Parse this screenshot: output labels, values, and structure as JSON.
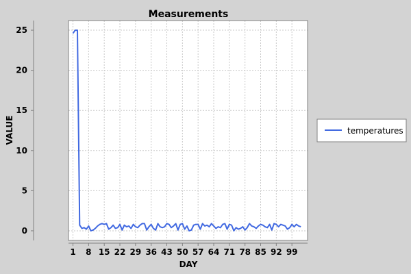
{
  "chart_data": {
    "type": "line",
    "title": "Measurements",
    "xlabel": "DAY",
    "ylabel": "VALUE",
    "xlim": [
      -1,
      106
    ],
    "ylim": [
      -1.2,
      26.2
    ],
    "x_ticks": [
      1,
      8,
      15,
      22,
      29,
      36,
      43,
      50,
      57,
      64,
      71,
      78,
      85,
      92,
      99
    ],
    "y_ticks": [
      0,
      5,
      10,
      15,
      20,
      25
    ],
    "grid": true,
    "legend_position": "right",
    "series": [
      {
        "name": "temperatures",
        "color": "#4169e1",
        "x": [
          1,
          2,
          3,
          4,
          5,
          6,
          7,
          8,
          9,
          10,
          11,
          12,
          13,
          14,
          15,
          16,
          17,
          18,
          19,
          20,
          21,
          22,
          23,
          24,
          25,
          26,
          27,
          28,
          29,
          30,
          31,
          32,
          33,
          34,
          35,
          36,
          37,
          38,
          39,
          40,
          41,
          42,
          43,
          44,
          45,
          46,
          47,
          48,
          49,
          50,
          51,
          52,
          53,
          54,
          55,
          56,
          57,
          58,
          59,
          60,
          61,
          62,
          63,
          64,
          65,
          66,
          67,
          68,
          69,
          70,
          71,
          72,
          73,
          74,
          75,
          76,
          77,
          78,
          79,
          80,
          81,
          82,
          83,
          84,
          85,
          86,
          87,
          88,
          89,
          90,
          91,
          92,
          93,
          94,
          95,
          96,
          97,
          98,
          99,
          100,
          101,
          102,
          103
        ],
        "y": [
          24.6,
          25.0,
          25.0,
          0.7,
          0.3,
          0.4,
          0.2,
          0.6,
          0.0,
          0.1,
          0.3,
          0.6,
          0.8,
          0.9,
          0.8,
          0.9,
          0.2,
          0.4,
          0.7,
          0.3,
          0.4,
          0.8,
          0.1,
          0.7,
          0.5,
          0.6,
          0.3,
          0.8,
          0.5,
          0.4,
          0.7,
          0.9,
          0.9,
          0.1,
          0.5,
          0.8,
          0.3,
          0.1,
          0.9,
          0.5,
          0.4,
          0.5,
          0.9,
          0.8,
          0.4,
          0.6,
          0.9,
          0.1,
          0.8,
          0.9,
          0.2,
          0.6,
          0.0,
          0.1,
          0.7,
          0.8,
          0.8,
          0.2,
          0.9,
          0.6,
          0.7,
          0.5,
          0.9,
          0.6,
          0.3,
          0.5,
          0.4,
          0.8,
          0.9,
          0.2,
          0.8,
          0.7,
          0.0,
          0.4,
          0.2,
          0.3,
          0.5,
          0.1,
          0.4,
          0.9,
          0.6,
          0.5,
          0.3,
          0.6,
          0.8,
          0.7,
          0.5,
          0.4,
          0.8,
          0.1,
          0.9,
          0.8,
          0.5,
          0.8,
          0.7,
          0.6,
          0.2,
          0.4,
          0.8,
          0.5,
          0.8,
          0.6,
          0.5
        ]
      }
    ]
  }
}
